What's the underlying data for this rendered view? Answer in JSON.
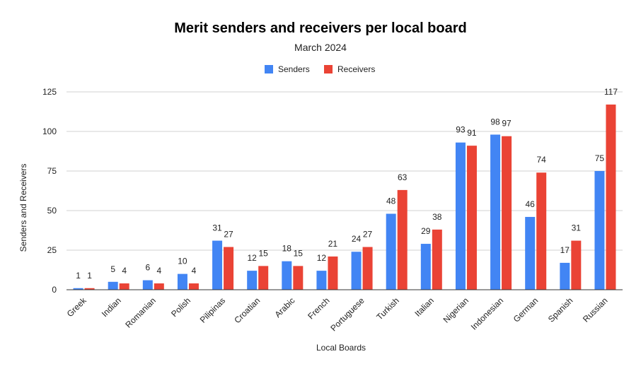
{
  "chart_data": {
    "type": "bar",
    "title": "Merit senders and receivers per local board",
    "subtitle": "March 2024",
    "xlabel": "Local Boards",
    "ylabel": "Senders and Receivers",
    "ylim": [
      0,
      125
    ],
    "yticks": [
      0,
      25,
      50,
      75,
      100,
      125
    ],
    "grid": true,
    "legend_position": "top",
    "categories": [
      "Greek",
      "Indian",
      "Romanian",
      "Polish",
      "Pilipinas",
      "Croatian",
      "Arabic",
      "French",
      "Portuguese",
      "Turkish",
      "Italian",
      "Nigerian",
      "Indonesian",
      "German",
      "Spanish",
      "Russian"
    ],
    "series": [
      {
        "name": "Senders",
        "color": "#4285f4",
        "values": [
          1,
          5,
          6,
          10,
          31,
          12,
          18,
          12,
          24,
          48,
          29,
          93,
          98,
          46,
          17,
          75
        ]
      },
      {
        "name": "Receivers",
        "color": "#ea4335",
        "values": [
          1,
          4,
          4,
          4,
          27,
          15,
          15,
          21,
          27,
          63,
          38,
          91,
          97,
          74,
          31,
          117
        ]
      }
    ]
  }
}
